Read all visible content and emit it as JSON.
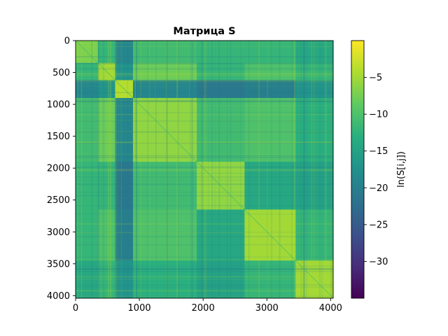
{
  "chart_data": {
    "type": "heatmap",
    "title": "Матрица S",
    "colorbar_label": "ln(S[i,j])",
    "colormap": "viridis",
    "x_ticks": [
      0,
      1000,
      2000,
      3000,
      4000
    ],
    "y_ticks": [
      0,
      500,
      1000,
      1500,
      2000,
      2500,
      3000,
      3500,
      4000
    ],
    "colorbar_ticks": [
      -5,
      -10,
      -15,
      -20,
      -25,
      -30
    ],
    "xlim": [
      0,
      4040
    ],
    "ylim": [
      4040,
      0
    ],
    "color_range": [
      -35,
      0
    ],
    "block_boundaries": [
      0,
      350,
      620,
      900,
      1900,
      2650,
      3450,
      4040
    ],
    "block_values": [
      [
        -7,
        -12,
        -19,
        -11,
        -12,
        -12,
        -14
      ],
      [
        -12,
        -5,
        -17,
        -8,
        -12,
        -10,
        -12
      ],
      [
        -19,
        -17,
        -4,
        -19,
        -21,
        -20,
        -17
      ],
      [
        -11,
        -8,
        -19,
        -6,
        -11,
        -10,
        -13
      ],
      [
        -12,
        -12,
        -21,
        -11,
        -6,
        -14,
        -15
      ],
      [
        -12,
        -10,
        -20,
        -10,
        -14,
        -5,
        -12
      ],
      [
        -14,
        -12,
        -17,
        -13,
        -15,
        -12,
        -5
      ]
    ]
  }
}
